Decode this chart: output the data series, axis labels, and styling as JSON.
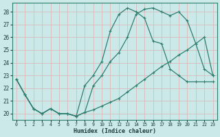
{
  "xlabel": "Humidex (Indice chaleur)",
  "bg_color": "#cce9e9",
  "grid_color": "#d8b8b8",
  "line_color": "#2d7d6e",
  "xlim": [
    -0.5,
    23.5
  ],
  "ylim": [
    19.5,
    28.7
  ],
  "yticks": [
    20,
    21,
    22,
    23,
    24,
    25,
    26,
    27,
    28
  ],
  "xticks": [
    0,
    1,
    2,
    3,
    4,
    5,
    6,
    7,
    8,
    9,
    10,
    11,
    12,
    13,
    14,
    15,
    16,
    17,
    18,
    19,
    20,
    21,
    22,
    23
  ],
  "line1_x": [
    0,
    1,
    2,
    3,
    4,
    5,
    6,
    7,
    8,
    9,
    10,
    11,
    12,
    13,
    14,
    15,
    16,
    17,
    18,
    19,
    20,
    21,
    22,
    23
  ],
  "line1_y": [
    22.7,
    21.5,
    20.4,
    20.0,
    20.4,
    20.0,
    20.0,
    19.8,
    20.1,
    20.3,
    20.6,
    20.9,
    21.2,
    21.7,
    22.2,
    22.7,
    23.2,
    23.7,
    24.1,
    24.6,
    25.0,
    25.5,
    26.0,
    23.0
  ],
  "line2_x": [
    0,
    1,
    2,
    3,
    4,
    5,
    6,
    7,
    8,
    9,
    10,
    11,
    12,
    13,
    14,
    15,
    16,
    17,
    18,
    19,
    20,
    21,
    22,
    23
  ],
  "line2_y": [
    22.7,
    21.5,
    20.4,
    20.0,
    20.4,
    20.0,
    20.0,
    19.8,
    20.1,
    22.2,
    23.0,
    24.1,
    24.8,
    26.0,
    27.8,
    28.2,
    28.3,
    28.0,
    27.7,
    28.0,
    27.3,
    25.5,
    23.5,
    23.0
  ],
  "line3_x": [
    0,
    1,
    2,
    3,
    4,
    5,
    6,
    7,
    8,
    9,
    10,
    11,
    12,
    13,
    14,
    15,
    16,
    17,
    18,
    19,
    20,
    21,
    22,
    23
  ],
  "line3_y": [
    22.7,
    21.5,
    20.4,
    20.0,
    20.4,
    20.0,
    20.0,
    19.8,
    22.2,
    23.0,
    24.1,
    26.5,
    27.8,
    28.3,
    28.0,
    27.5,
    25.7,
    25.5,
    23.5,
    23.0,
    22.5,
    22.5,
    22.5,
    22.5
  ]
}
